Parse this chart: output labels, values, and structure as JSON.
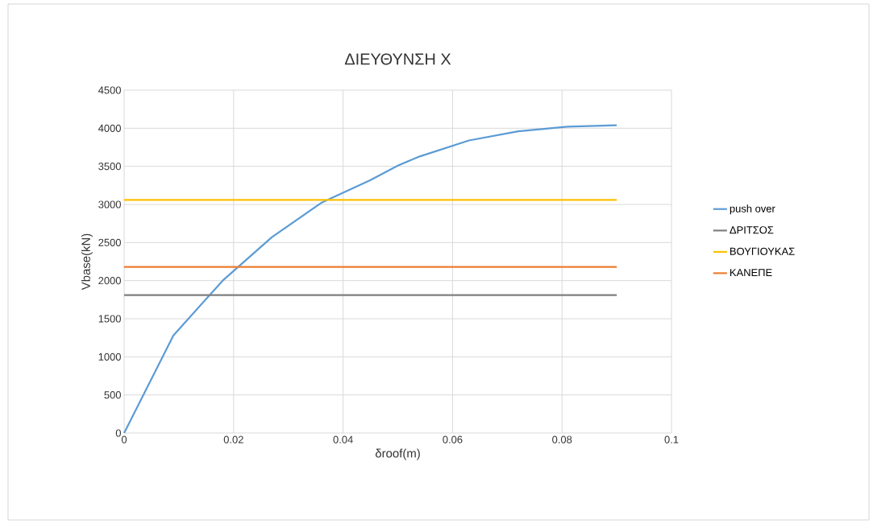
{
  "chart_data": {
    "type": "line",
    "title": "ΔΙΕΥΘΥΝΣΗ Χ",
    "xlabel": "δroof(m)",
    "ylabel": "Vbase(kN)",
    "xlim": [
      0,
      0.1
    ],
    "xticks": [
      0,
      0.02,
      0.04,
      0.06,
      0.08,
      0.1
    ],
    "ylim": [
      0,
      4500
    ],
    "yticks": [
      0,
      500,
      1000,
      1500,
      2000,
      2500,
      3000,
      3500,
      4000,
      4500
    ],
    "grid": true,
    "legend": "right",
    "marker": "none",
    "line_style": "solid",
    "series": [
      {
        "name": "push over",
        "color": "#5b9bd5",
        "x": [
          0,
          0.009,
          0.018,
          0.024,
          0.027,
          0.036,
          0.045,
          0.05,
          0.054,
          0.063,
          0.072,
          0.081,
          0.09
        ],
        "values": [
          0,
          1280,
          2000,
          2380,
          2570,
          3020,
          3320,
          3510,
          3630,
          3840,
          3960,
          4020,
          4040
        ]
      },
      {
        "name": "ΔΡΙΤΣΟΣ",
        "color": "#7f7f7f",
        "x": [
          0,
          0.09
        ],
        "values": [
          1810,
          1810
        ]
      },
      {
        "name": "ΒΟΥΓΙΟΥΚΑΣ",
        "color": "#ffc000",
        "x": [
          0,
          0.09
        ],
        "values": [
          3060,
          3060
        ]
      },
      {
        "name": "ΚΑΝΕΠΕ",
        "color": "#ed7d31",
        "x": [
          0,
          0.09
        ],
        "values": [
          2180,
          2180
        ]
      }
    ]
  }
}
